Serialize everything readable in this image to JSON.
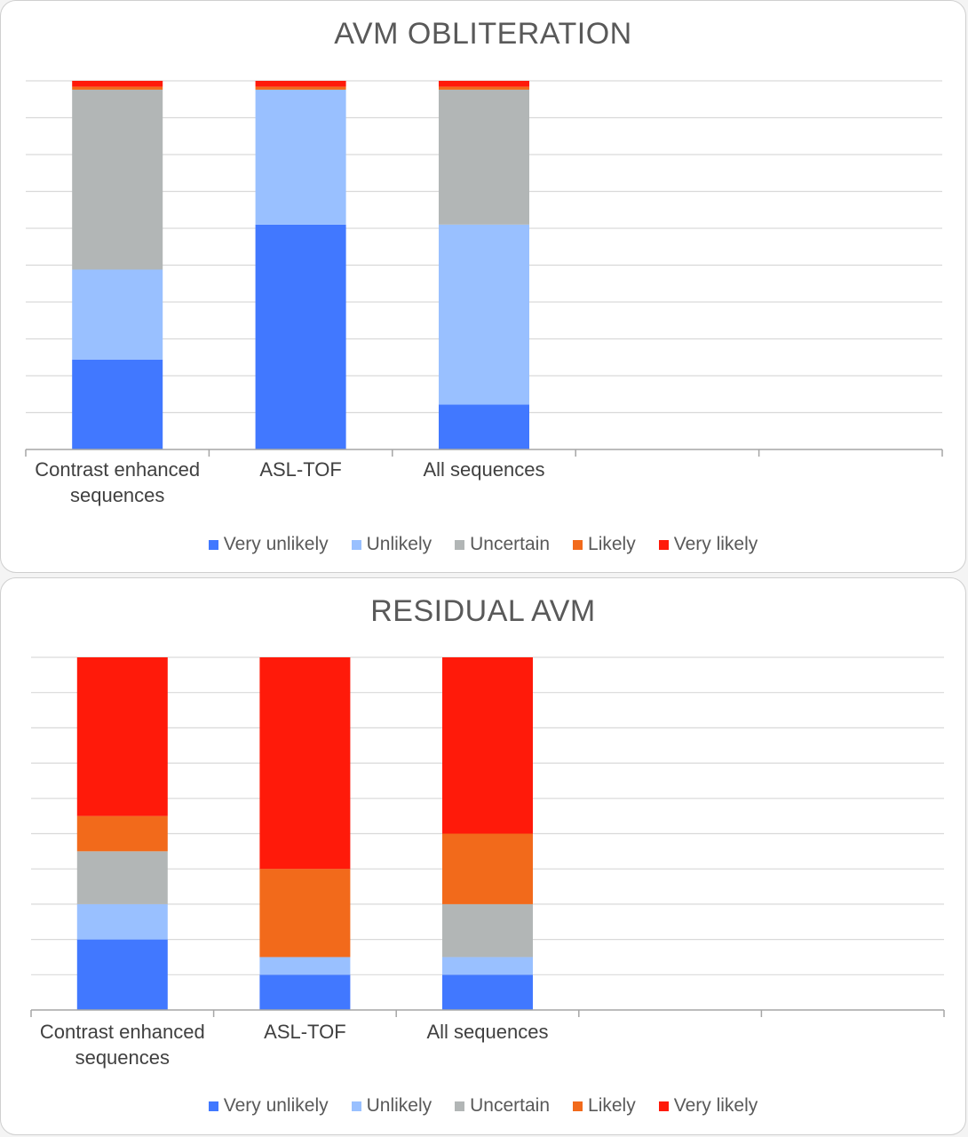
{
  "legend": [
    "Very unlikely",
    "Unlikely",
    "Uncertain",
    "Likely",
    "Very likely"
  ],
  "colors": {
    "Very unlikely": "#4178ff",
    "Unlikely": "#99c0ff",
    "Uncertain": "#b2b6b6",
    "Likely": "#f26a1b",
    "Very likely": "#ff1a0a"
  },
  "chart_data": [
    {
      "type": "bar",
      "stacked": true,
      "title": "AVM OBLITERATION",
      "categories": [
        "Contrast enhanced sequences",
        "ASL-TOF",
        "All sequences",
        "",
        ""
      ],
      "series": [
        {
          "name": "Very unlikely",
          "values": [
            24.4,
            61,
            12.2,
            0,
            0
          ]
        },
        {
          "name": "Unlikely",
          "values": [
            24.4,
            36.6,
            48.8,
            0,
            0
          ]
        },
        {
          "name": "Uncertain",
          "values": [
            48.8,
            0,
            36.6,
            0,
            0
          ]
        },
        {
          "name": "Likely",
          "values": [
            0.8,
            0.8,
            0.8,
            0,
            0
          ]
        },
        {
          "name": "Very likely",
          "values": [
            1.6,
            1.6,
            1.6,
            0,
            0
          ]
        }
      ],
      "ylim": [
        0,
        100
      ],
      "grid": true,
      "legend_position": "bottom"
    },
    {
      "type": "bar",
      "stacked": true,
      "title": "RESIDUAL AVM",
      "categories": [
        "Contrast enhanced sequences",
        "ASL-TOF",
        "All sequences",
        "",
        ""
      ],
      "series": [
        {
          "name": "Very unlikely",
          "values": [
            20,
            10,
            10,
            0,
            0
          ]
        },
        {
          "name": "Unlikely",
          "values": [
            10,
            5,
            5,
            0,
            0
          ]
        },
        {
          "name": "Uncertain",
          "values": [
            15,
            0,
            15,
            0,
            0
          ]
        },
        {
          "name": "Likely",
          "values": [
            10,
            25,
            20,
            0,
            0
          ]
        },
        {
          "name": "Very likely",
          "values": [
            45,
            60,
            50,
            0,
            0
          ]
        }
      ],
      "ylim": [
        0,
        100
      ],
      "grid": true,
      "legend_position": "bottom"
    }
  ]
}
